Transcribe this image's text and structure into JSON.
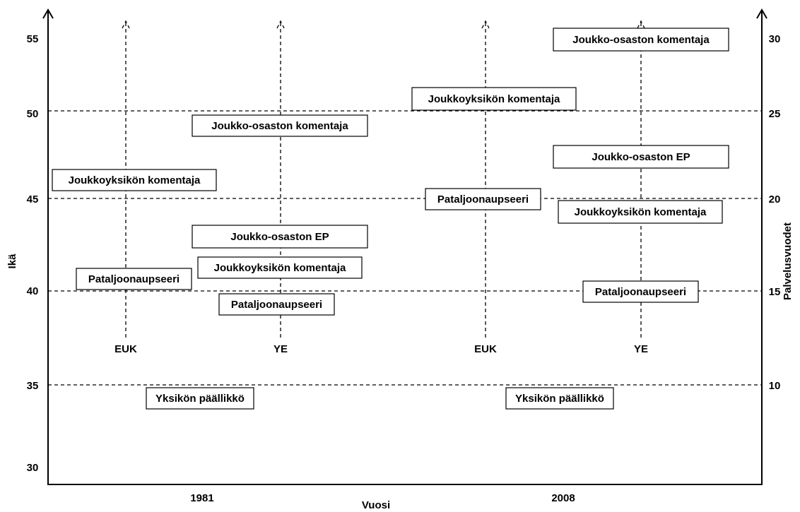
{
  "left_axis": {
    "title": "Ikä",
    "ticks": [
      55,
      50,
      45,
      40,
      35,
      30
    ]
  },
  "right_axis": {
    "title": "Palvelusvuodet",
    "ticks": [
      30,
      25,
      20,
      15,
      10
    ]
  },
  "x_axis": {
    "title": "Vuosi",
    "labels": [
      "1981",
      "2008"
    ]
  },
  "columns": [
    "EUK",
    "YE",
    "EUK",
    "YE"
  ],
  "boxes": [
    {
      "label": "Joukkoyksikön komentaja"
    },
    {
      "label": "Pataljoonaupseeri"
    },
    {
      "label": "Yksikön päällikkö"
    },
    {
      "label": "Joukko-osaston komentaja"
    },
    {
      "label": "Joukko-osaston EP"
    },
    {
      "label": "Joukkoyksikön komentaja"
    },
    {
      "label": "Pataljoonaupseeri"
    },
    {
      "label": "Joukkoyksikön komentaja"
    },
    {
      "label": "Pataljoonaupseeri"
    },
    {
      "label": "Yksikön päällikkö"
    },
    {
      "label": "Joukko-osaston komentaja"
    },
    {
      "label": "Joukko-osaston EP"
    },
    {
      "label": "Joukkoyksikön komentaja"
    },
    {
      "label": "Pataljoonaupseeri"
    }
  ]
}
